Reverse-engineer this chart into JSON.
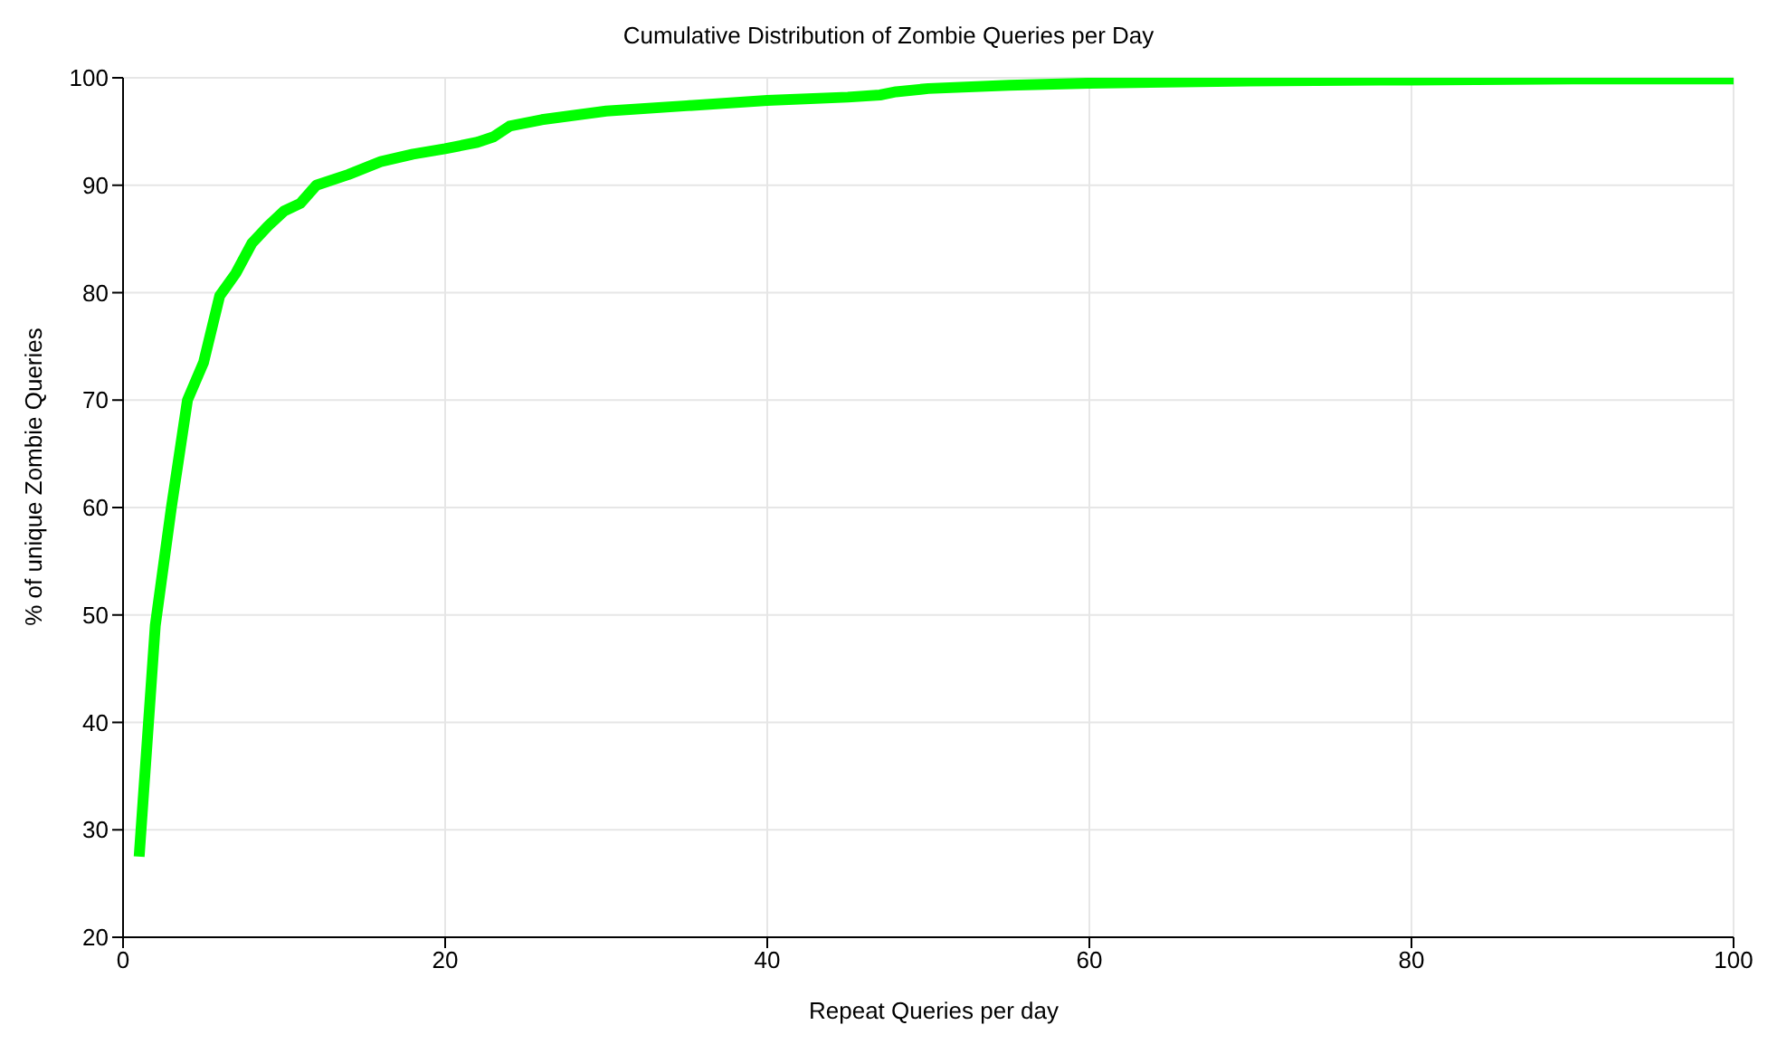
{
  "chart_data": {
    "type": "line",
    "title": "Cumulative Distribution of Zombie Queries per Day",
    "xlabel": "Repeat Queries per day",
    "ylabel": "% of unique Zombie Queries",
    "x": [
      1,
      2,
      3,
      4,
      5,
      6,
      7,
      8,
      9,
      10,
      11,
      12,
      14,
      16,
      18,
      20,
      22,
      23,
      24,
      26,
      28,
      30,
      35,
      40,
      45,
      47,
      48,
      50,
      55,
      60,
      70,
      80,
      90,
      100
    ],
    "series": [
      {
        "color": "#00ff00",
        "values": [
          27.5,
          49,
          60,
          70,
          73.5,
          79.7,
          81.8,
          84.6,
          86.2,
          87.6,
          88.3,
          90,
          91,
          92.2,
          92.9,
          93.4,
          94,
          94.5,
          95.5,
          96.1,
          96.5,
          96.9,
          97.4,
          97.9,
          98.2,
          98.4,
          98.7,
          99,
          99.3,
          99.5,
          99.7,
          99.8,
          99.9,
          99.9
        ]
      }
    ],
    "xlim": [
      0,
      100
    ],
    "xticks": [
      0,
      20,
      40,
      60,
      80,
      100
    ],
    "ylim": [
      20,
      100
    ],
    "yticks": [
      20,
      30,
      40,
      50,
      60,
      70,
      80,
      90,
      100
    ],
    "grid": true,
    "marker": "none",
    "line_style": "solid"
  }
}
